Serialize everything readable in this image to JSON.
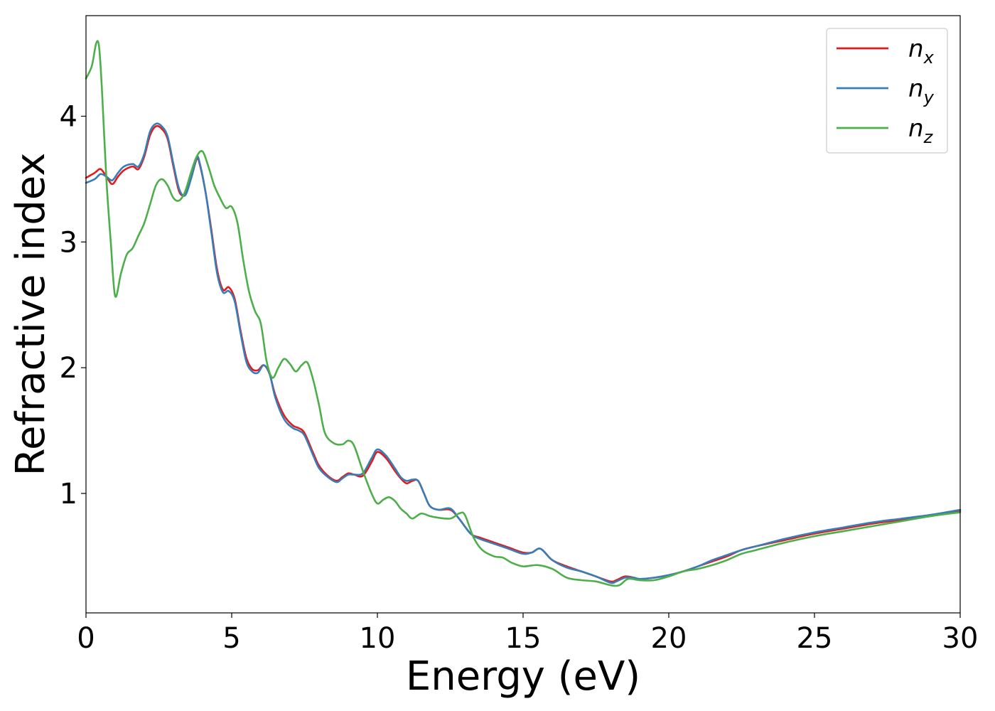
{
  "chart_data": {
    "type": "line",
    "xlabel": "Energy (eV)",
    "ylabel": "Refractive index",
    "xlim": [
      0,
      30
    ],
    "ylim": [
      0.05,
      4.8
    ],
    "xticks": [
      0,
      5,
      10,
      15,
      20,
      25,
      30
    ],
    "yticks": [
      1,
      2,
      3,
      4
    ],
    "grid": false,
    "legend_position": "top-right",
    "series": [
      {
        "name": "n_x",
        "legend_base": "n",
        "legend_sub": "x",
        "color": "#e41a1c",
        "x": [
          0,
          0.3,
          0.5,
          0.7,
          0.9,
          1.1,
          1.3,
          1.6,
          1.8,
          2.0,
          2.2,
          2.4,
          2.6,
          2.8,
          3.0,
          3.2,
          3.4,
          3.6,
          3.8,
          3.9,
          4.1,
          4.3,
          4.5,
          4.7,
          4.9,
          5.1,
          5.3,
          5.5,
          5.7,
          5.9,
          6.1,
          6.3,
          6.5,
          6.8,
          7.1,
          7.3,
          7.5,
          7.8,
          8.0,
          8.3,
          8.6,
          8.8,
          9.0,
          9.2,
          9.5,
          9.8,
          10.0,
          10.3,
          10.6,
          10.8,
          11.0,
          11.2,
          11.4,
          11.6,
          11.8,
          12.1,
          12.5,
          12.8,
          13.2,
          13.5,
          14.0,
          14.5,
          15.0,
          15.3,
          15.6,
          16.0,
          16.5,
          17.0,
          17.5,
          18.0,
          18.2,
          18.5,
          18.8,
          19.0,
          19.5,
          20.0,
          20.5,
          21.0,
          21.5,
          22.0,
          22.5,
          23.0,
          24.0,
          25.0,
          26.0,
          27.0,
          28.0,
          29.0,
          30.0
        ],
        "y": [
          3.51,
          3.55,
          3.58,
          3.52,
          3.46,
          3.52,
          3.57,
          3.6,
          3.58,
          3.68,
          3.85,
          3.92,
          3.9,
          3.82,
          3.6,
          3.4,
          3.38,
          3.5,
          3.66,
          3.62,
          3.4,
          3.1,
          2.78,
          2.62,
          2.64,
          2.55,
          2.3,
          2.08,
          1.99,
          1.98,
          2.02,
          1.95,
          1.78,
          1.62,
          1.54,
          1.52,
          1.48,
          1.32,
          1.22,
          1.14,
          1.1,
          1.13,
          1.16,
          1.15,
          1.14,
          1.25,
          1.33,
          1.28,
          1.18,
          1.12,
          1.08,
          1.1,
          1.1,
          1.0,
          0.9,
          0.87,
          0.87,
          0.8,
          0.68,
          0.65,
          0.61,
          0.57,
          0.53,
          0.53,
          0.56,
          0.47,
          0.42,
          0.38,
          0.34,
          0.3,
          0.31,
          0.34,
          0.33,
          0.32,
          0.33,
          0.35,
          0.38,
          0.42,
          0.46,
          0.5,
          0.55,
          0.58,
          0.63,
          0.68,
          0.72,
          0.76,
          0.79,
          0.82,
          0.86
        ]
      },
      {
        "name": "n_y",
        "legend_base": "n",
        "legend_sub": "y",
        "color": "#377eb8",
        "x": [
          0,
          0.3,
          0.5,
          0.7,
          0.9,
          1.1,
          1.3,
          1.6,
          1.8,
          2.0,
          2.2,
          2.4,
          2.6,
          2.8,
          3.0,
          3.2,
          3.4,
          3.6,
          3.8,
          3.9,
          4.1,
          4.3,
          4.5,
          4.7,
          4.9,
          5.1,
          5.3,
          5.5,
          5.7,
          5.9,
          6.1,
          6.3,
          6.5,
          6.8,
          7.1,
          7.3,
          7.5,
          7.8,
          8.0,
          8.3,
          8.6,
          8.8,
          9.0,
          9.2,
          9.5,
          9.8,
          10.0,
          10.3,
          10.6,
          10.8,
          11.0,
          11.2,
          11.4,
          11.6,
          11.8,
          12.1,
          12.5,
          12.8,
          13.2,
          13.5,
          14.0,
          14.5,
          15.0,
          15.3,
          15.6,
          16.0,
          16.5,
          17.0,
          17.5,
          18.0,
          18.2,
          18.5,
          18.8,
          19.0,
          19.5,
          20.0,
          20.5,
          21.0,
          21.5,
          22.0,
          22.5,
          23.0,
          24.0,
          25.0,
          26.0,
          27.0,
          28.0,
          29.0,
          30.0
        ],
        "y": [
          3.47,
          3.5,
          3.54,
          3.52,
          3.49,
          3.55,
          3.6,
          3.62,
          3.6,
          3.7,
          3.88,
          3.94,
          3.92,
          3.84,
          3.62,
          3.42,
          3.37,
          3.5,
          3.67,
          3.63,
          3.4,
          3.08,
          2.75,
          2.6,
          2.61,
          2.53,
          2.28,
          2.05,
          1.97,
          1.96,
          2.02,
          1.95,
          1.76,
          1.59,
          1.52,
          1.5,
          1.46,
          1.3,
          1.2,
          1.13,
          1.09,
          1.12,
          1.15,
          1.15,
          1.16,
          1.28,
          1.35,
          1.3,
          1.2,
          1.13,
          1.1,
          1.11,
          1.1,
          1.0,
          0.9,
          0.87,
          0.88,
          0.8,
          0.68,
          0.64,
          0.6,
          0.56,
          0.52,
          0.53,
          0.56,
          0.47,
          0.41,
          0.38,
          0.34,
          0.29,
          0.3,
          0.33,
          0.33,
          0.32,
          0.33,
          0.35,
          0.38,
          0.42,
          0.47,
          0.51,
          0.55,
          0.58,
          0.64,
          0.69,
          0.73,
          0.77,
          0.8,
          0.83,
          0.87
        ]
      },
      {
        "name": "n_z",
        "legend_base": "n",
        "legend_sub": "z",
        "color": "#4daf4a",
        "x": [
          0,
          0.2,
          0.35,
          0.45,
          0.55,
          0.7,
          0.85,
          1.0,
          1.2,
          1.4,
          1.6,
          1.8,
          2.0,
          2.2,
          2.4,
          2.6,
          2.8,
          3.0,
          3.2,
          3.4,
          3.6,
          3.8,
          4.0,
          4.2,
          4.4,
          4.6,
          4.8,
          5.0,
          5.2,
          5.4,
          5.6,
          5.8,
          6.0,
          6.2,
          6.4,
          6.6,
          6.8,
          7.0,
          7.2,
          7.4,
          7.6,
          7.8,
          8.0,
          8.2,
          8.5,
          8.8,
          9.0,
          9.2,
          9.5,
          9.8,
          10.0,
          10.2,
          10.4,
          10.6,
          10.8,
          11.0,
          11.2,
          11.5,
          11.8,
          12.0,
          12.5,
          12.8,
          13.0,
          13.3,
          13.6,
          14.0,
          14.3,
          14.6,
          15.0,
          15.5,
          16.0,
          16.5,
          17.0,
          17.5,
          18.0,
          18.3,
          18.6,
          19.0,
          19.5,
          20.0,
          20.5,
          21.0,
          21.5,
          22.0,
          22.5,
          23.0,
          24.0,
          25.0,
          26.0,
          27.0,
          28.0,
          29.0,
          30.0
        ],
        "y": [
          4.3,
          4.4,
          4.58,
          4.55,
          4.2,
          3.5,
          3.0,
          2.57,
          2.75,
          2.9,
          2.95,
          3.05,
          3.15,
          3.3,
          3.45,
          3.5,
          3.45,
          3.35,
          3.33,
          3.4,
          3.55,
          3.68,
          3.72,
          3.6,
          3.45,
          3.35,
          3.27,
          3.28,
          3.15,
          2.85,
          2.6,
          2.45,
          2.35,
          2.05,
          1.92,
          2.0,
          2.07,
          2.03,
          1.97,
          2.02,
          2.04,
          1.9,
          1.7,
          1.48,
          1.4,
          1.39,
          1.42,
          1.38,
          1.18,
          1.0,
          0.92,
          0.95,
          0.97,
          0.94,
          0.88,
          0.84,
          0.8,
          0.84,
          0.82,
          0.81,
          0.8,
          0.84,
          0.83,
          0.65,
          0.55,
          0.5,
          0.49,
          0.45,
          0.42,
          0.43,
          0.4,
          0.33,
          0.31,
          0.3,
          0.27,
          0.27,
          0.32,
          0.31,
          0.31,
          0.34,
          0.38,
          0.4,
          0.43,
          0.47,
          0.52,
          0.55,
          0.61,
          0.66,
          0.7,
          0.74,
          0.78,
          0.82,
          0.85
        ]
      }
    ]
  }
}
